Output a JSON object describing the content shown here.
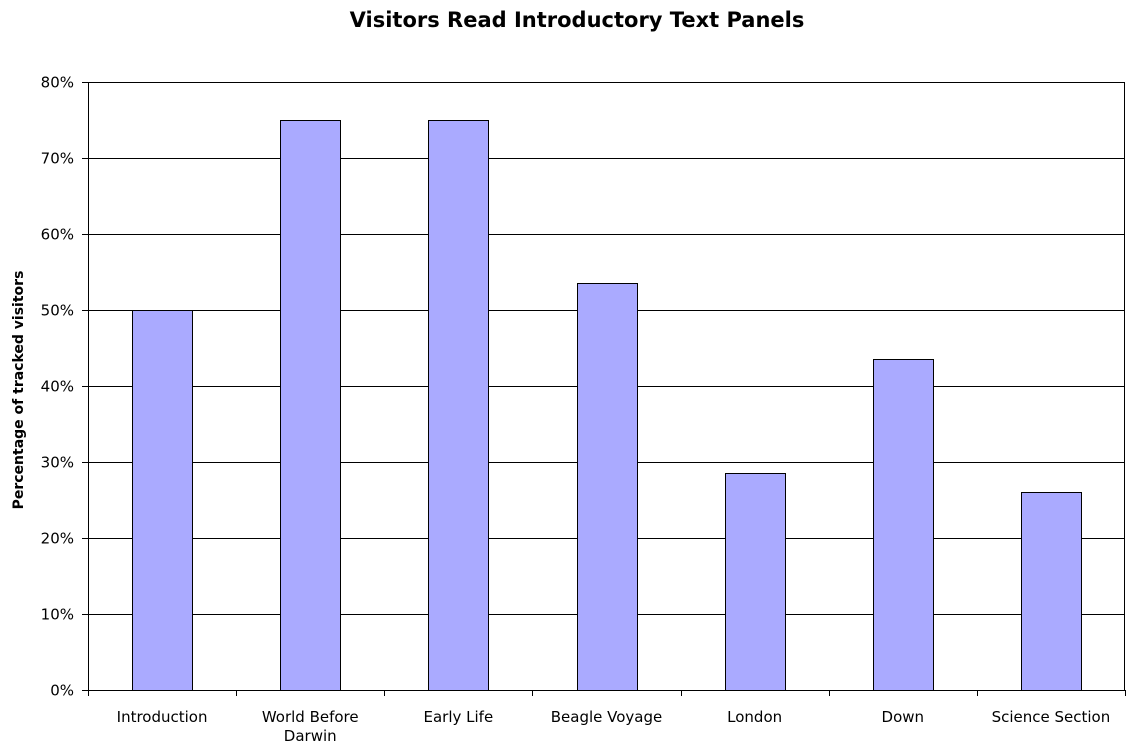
{
  "chart_data": {
    "type": "bar",
    "title": "Visitors Read Introductory Text Panels",
    "ylabel": "Percentage of tracked visitors",
    "xlabel": "",
    "categories": [
      [
        "Introduction"
      ],
      [
        "World Before",
        "Darwin"
      ],
      [
        "Early Life"
      ],
      [
        "Beagle Voyage"
      ],
      [
        "London"
      ],
      [
        "Down"
      ],
      [
        "Science Section"
      ]
    ],
    "values": [
      50,
      75,
      75,
      53.5,
      28.5,
      43.5,
      26
    ],
    "ylim": [
      0,
      80
    ],
    "ytick_step": 10,
    "ytick_suffix": "%",
    "grid": true,
    "legend": "none",
    "bar_color": "#aaaaff"
  }
}
